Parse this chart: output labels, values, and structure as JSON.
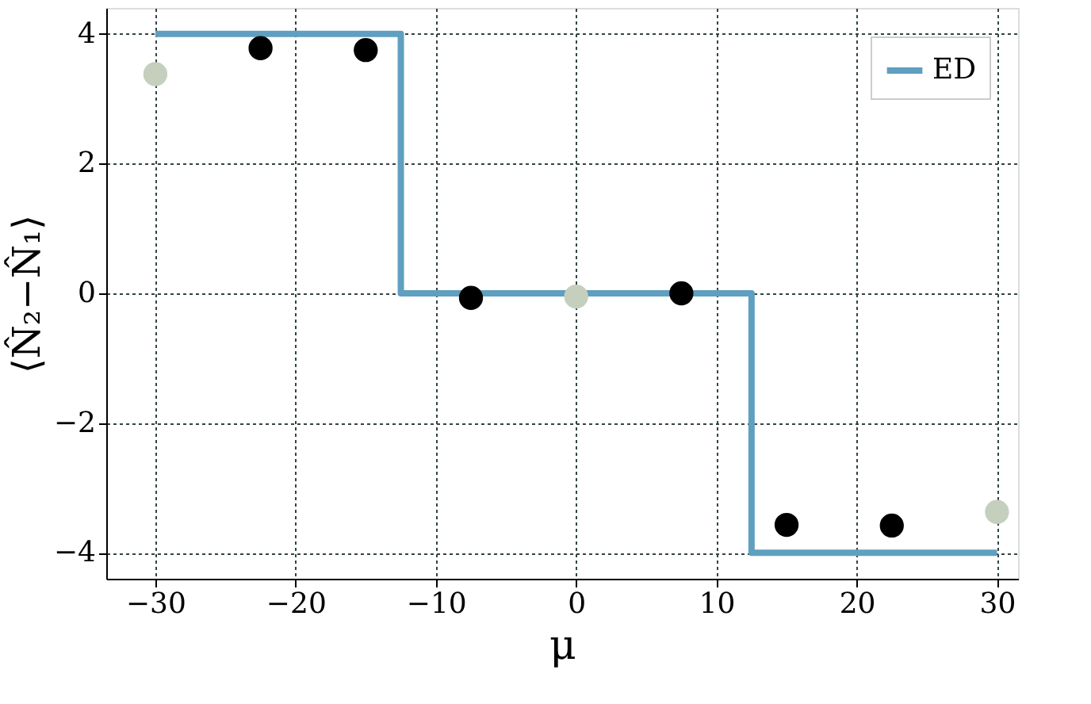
{
  "chart_data": {
    "type": "scatter",
    "xlabel": "μ",
    "ylabel": "⟨N̂₂−N̂₁⟩",
    "xlim": [
      -33.5,
      31.5
    ],
    "ylim": [
      -4.4,
      4.4
    ],
    "xticks": [
      {
        "value": -30,
        "label": "−30"
      },
      {
        "value": -20,
        "label": "−20"
      },
      {
        "value": -10,
        "label": "−10"
      },
      0,
      10,
      20,
      30
    ],
    "yticks": [
      {
        "value": -4,
        "label": "−4"
      },
      {
        "value": -2,
        "label": "−2"
      },
      0,
      2,
      4
    ],
    "grid": true,
    "legend": "top right",
    "marker": "circle",
    "series": [
      {
        "name": "ED",
        "type": "step",
        "marker": "none",
        "color": "#5f9fbf",
        "x": [
          -30,
          -12.5,
          12.5,
          30
        ],
        "values": [
          4,
          0,
          -4,
          -4
        ]
      },
      {
        "color": "#c5cfbd",
        "x": [
          -30,
          0,
          30
        ],
        "values": [
          3.38,
          -0.05,
          -3.37
        ]
      },
      {
        "color": "#000000",
        "x": [
          -22.5,
          -15,
          -7.5,
          7.5,
          15,
          22.5
        ],
        "values": [
          3.78,
          3.75,
          -0.07,
          0.0,
          -3.57,
          -3.58
        ]
      }
    ]
  }
}
